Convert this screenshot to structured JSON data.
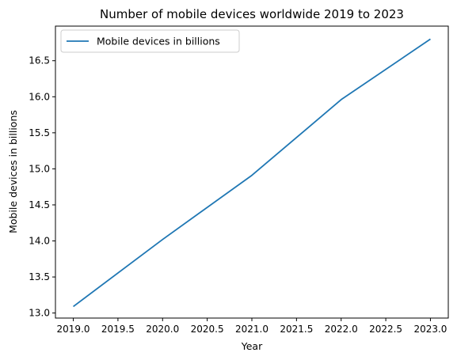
{
  "chart_data": {
    "type": "line",
    "title": "Number of mobile devices worldwide 2019 to 2023",
    "xlabel": "Year",
    "ylabel": "Mobile devices in billions",
    "x": [
      2019,
      2020,
      2021,
      2022,
      2023
    ],
    "series": [
      {
        "name": "Mobile devices in billions",
        "values": [
          13.09,
          14.02,
          14.91,
          15.96,
          16.8
        ],
        "color": "#1f77b4"
      }
    ],
    "xticks": [
      "2019.0",
      "2019.5",
      "2020.0",
      "2020.5",
      "2021.0",
      "2021.5",
      "2022.0",
      "2022.5",
      "2023.0"
    ],
    "yticks": [
      "13.0",
      "13.5",
      "14.0",
      "14.5",
      "15.0",
      "15.5",
      "16.0",
      "16.5"
    ],
    "xlim": [
      2018.8,
      2023.2
    ],
    "ylim": [
      12.93,
      16.98
    ],
    "grid": false,
    "legend_position": "top-left"
  }
}
